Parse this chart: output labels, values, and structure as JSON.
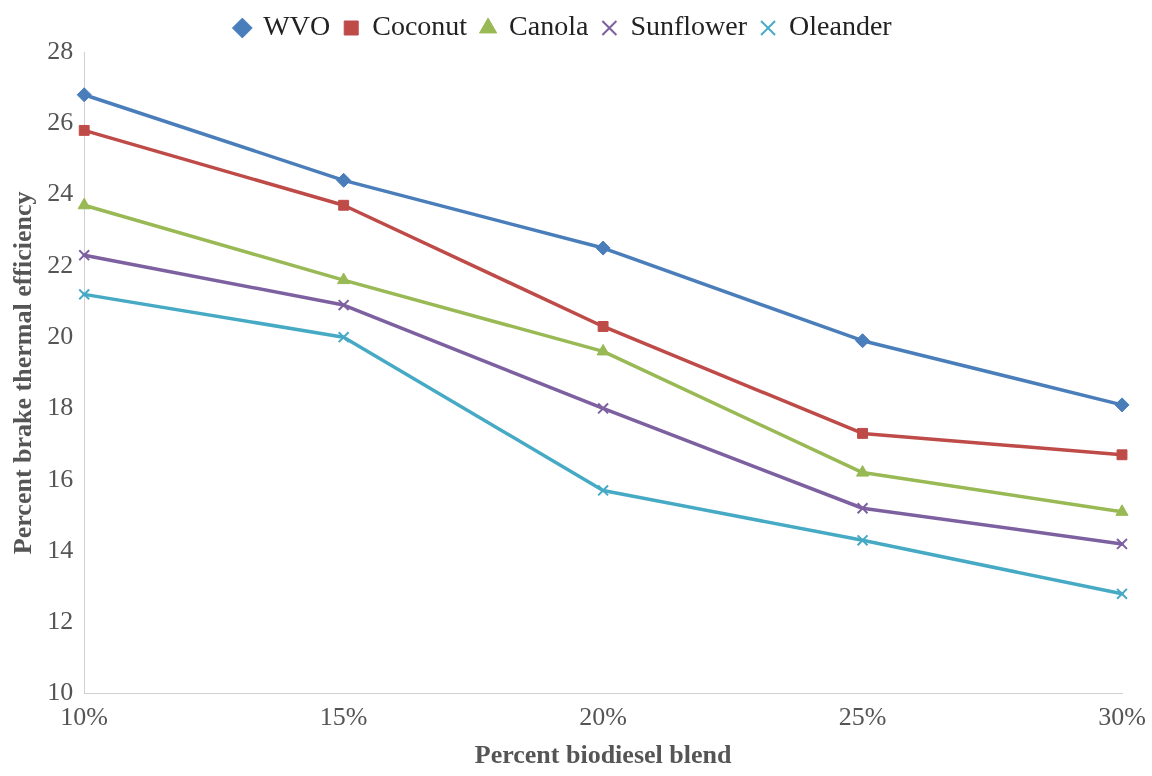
{
  "chart_data": {
    "type": "line",
    "xlabel": "Percent biodiesel blend",
    "ylabel": "Percent brake thermal efficiency",
    "categories": [
      "10%",
      "15%",
      "20%",
      "25%",
      "30%"
    ],
    "series": [
      {
        "name": "WVO",
        "color": "#4a7ebb",
        "marker": "diamond",
        "values": [
          26.8,
          24.4,
          22.5,
          19.9,
          18.1
        ]
      },
      {
        "name": "Coconut",
        "color": "#be4b48",
        "marker": "square",
        "values": [
          25.8,
          23.7,
          20.3,
          17.3,
          16.7
        ]
      },
      {
        "name": "Canola",
        "color": "#98b954",
        "marker": "triangle",
        "values": [
          23.7,
          21.6,
          19.6,
          16.2,
          15.1
        ]
      },
      {
        "name": "Sunflower",
        "color": "#7d60a0",
        "marker": "cross",
        "values": [
          22.3,
          20.9,
          18.0,
          15.2,
          14.2
        ]
      },
      {
        "name": "Oleander",
        "color": "#46aac5",
        "marker": "cross",
        "values": [
          21.2,
          20.0,
          15.7,
          14.3,
          12.8
        ]
      }
    ],
    "ylim": [
      10,
      28
    ],
    "yticks": [
      10,
      12,
      14,
      16,
      18,
      20,
      22,
      24,
      26,
      28
    ],
    "grid": false,
    "legend": "top",
    "line_style": "solid"
  }
}
